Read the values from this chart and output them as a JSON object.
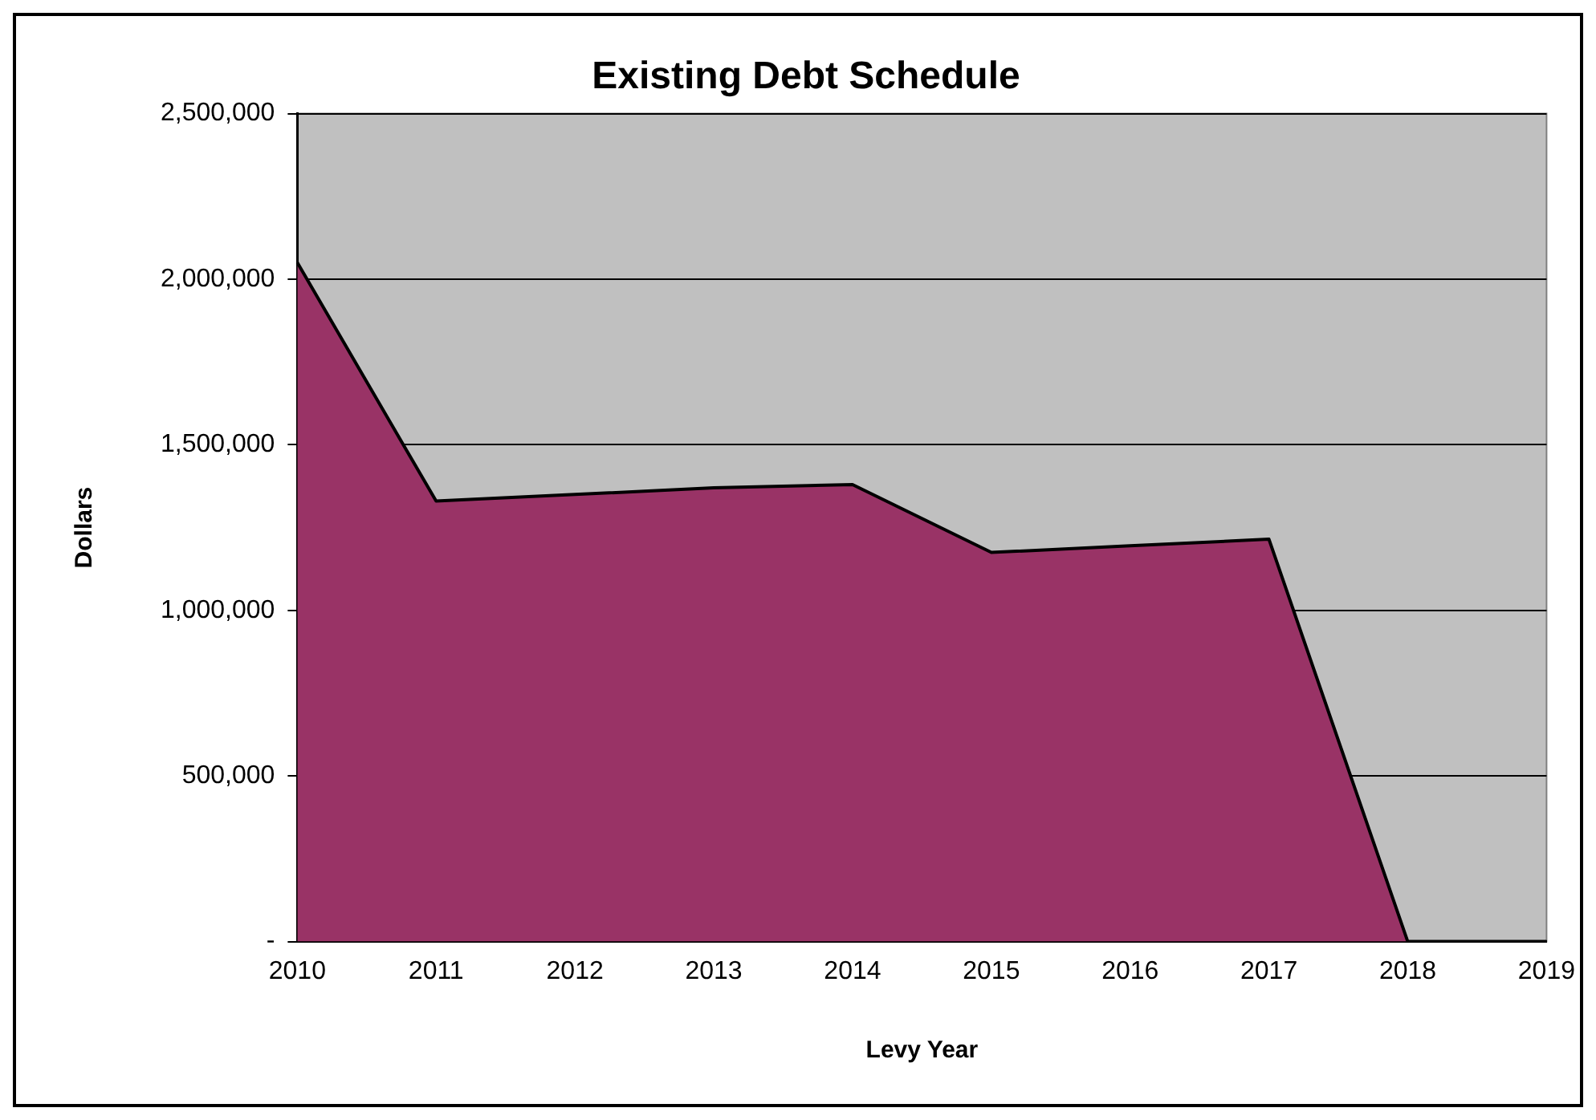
{
  "chart_data": {
    "type": "area",
    "title": "Existing Debt Schedule",
    "xlabel": "Levy Year",
    "ylabel": "Dollars",
    "categories": [
      "2010",
      "2011",
      "2012",
      "2013",
      "2014",
      "2015",
      "2016",
      "2017",
      "2018",
      "2019"
    ],
    "series": [
      {
        "color": "#993366",
        "values": [
          2050000,
          1330000,
          1350000,
          1370000,
          1380000,
          1175000,
          1195000,
          1215000,
          0,
          0
        ]
      }
    ],
    "ylim": [
      0,
      2500000
    ],
    "yticks": [
      {
        "value": 0,
        "label": "-"
      },
      {
        "value": 500000,
        "label": "500,000"
      },
      {
        "value": 1000000,
        "label": "1,000,000"
      },
      {
        "value": 1500000,
        "label": "1,500,000"
      },
      {
        "value": 2000000,
        "label": "2,000,000"
      },
      {
        "value": 2500000,
        "label": "2,500,000"
      }
    ],
    "grid": "y",
    "legend": false
  }
}
